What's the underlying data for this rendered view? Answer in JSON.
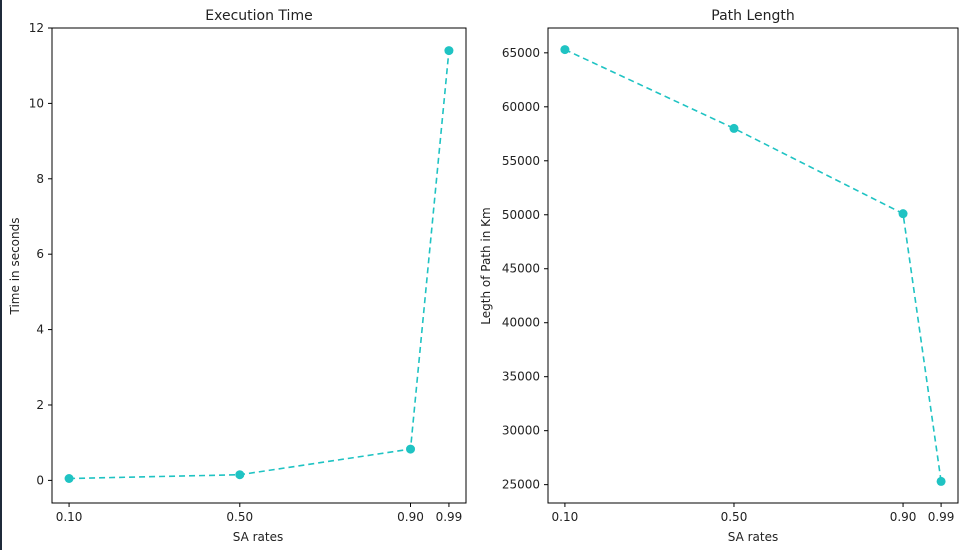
{
  "chart_data": [
    {
      "type": "line",
      "title": "Execution Time",
      "xlabel": "SA rates",
      "ylabel": "Time in seconds",
      "x": [
        0.1,
        0.5,
        0.9,
        0.99
      ],
      "x_tick_labels": [
        "0.10",
        "0.50",
        "0.90",
        "0.99"
      ],
      "y": [
        0.05,
        0.15,
        0.83,
        11.4
      ],
      "y_ticks": [
        0,
        2,
        4,
        6,
        8,
        10,
        12
      ],
      "ylim": [
        -0.6,
        12.0
      ],
      "xlim": [
        0.06,
        1.03
      ],
      "line_style": "dashed",
      "marker": "circle",
      "color": "#1fc3c3",
      "grid": false
    },
    {
      "type": "line",
      "title": "Path Length",
      "xlabel": "SA rates",
      "ylabel": "Legth of Path in Km",
      "x": [
        0.1,
        0.5,
        0.9,
        0.99
      ],
      "x_tick_labels": [
        "0.10",
        "0.50",
        "0.90",
        "0.99"
      ],
      "y": [
        65300,
        58000,
        50100,
        25300
      ],
      "y_ticks": [
        25000,
        30000,
        35000,
        40000,
        45000,
        50000,
        55000,
        60000,
        65000
      ],
      "ylim": [
        23300,
        67300
      ],
      "xlim": [
        0.06,
        1.03
      ],
      "line_style": "dashed",
      "marker": "circle",
      "color": "#1fc3c3",
      "grid": false
    }
  ]
}
